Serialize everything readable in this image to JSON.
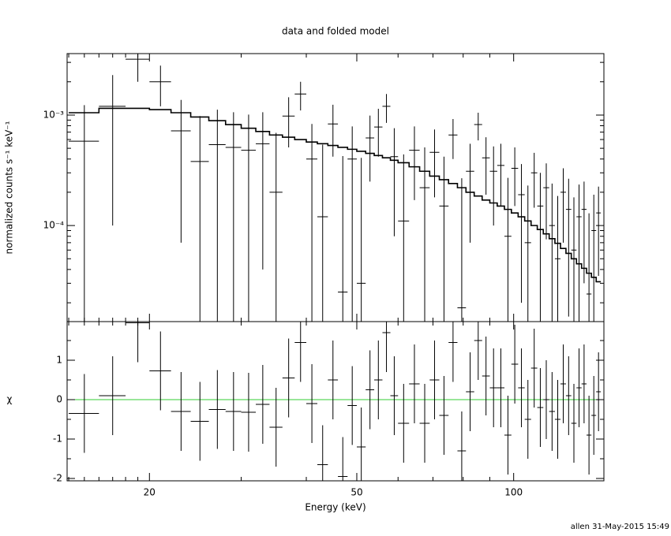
{
  "chart_data": [
    {
      "type": "errorbar",
      "title": "data and folded model",
      "ylabel": "normalized counts s⁻¹ keV⁻¹",
      "ylog": true,
      "xlim": [
        13.9,
        149
      ],
      "ylim": [
        1.35e-05,
        0.0036
      ],
      "yticks": [
        {
          "value": 0.0001,
          "label": "10⁻⁴"
        },
        {
          "value": 0.001,
          "label": "10⁻³"
        }
      ],
      "yminorticks": [
        2e-05,
        3e-05,
        4e-05,
        5e-05,
        6e-05,
        7e-05,
        8e-05,
        9e-05,
        0.0002,
        0.0003,
        0.0004,
        0.0005,
        0.0006,
        0.0007,
        0.0008,
        0.0009,
        0.002,
        0.003
      ],
      "x": [
        15,
        17,
        19,
        21,
        23,
        25,
        27,
        29,
        31,
        33,
        35,
        37,
        39,
        41,
        43,
        45,
        47,
        49,
        51,
        53,
        55,
        57,
        59,
        61.5,
        64.5,
        67.5,
        70.5,
        73.5,
        76.5,
        79.5,
        82.5,
        85.5,
        88.5,
        91.5,
        94.5,
        97.5,
        100.5,
        103.5,
        106.5,
        109.5,
        112.5,
        115.5,
        118.5,
        121.5,
        124.5,
        127.5,
        130.5,
        133.5,
        136.5,
        139.5,
        142.5,
        145.5
      ],
      "xerr": [
        1,
        1,
        1,
        1,
        1,
        1,
        1,
        1,
        1,
        1,
        1,
        1,
        1,
        1,
        1,
        1,
        1,
        1,
        1,
        1,
        1,
        1,
        1,
        1.5,
        1.5,
        1.5,
        1.5,
        1.5,
        1.5,
        1.5,
        1.5,
        1.5,
        1.5,
        1.5,
        1.5,
        1.5,
        1.5,
        1.5,
        1.5,
        1.5,
        1.5,
        1.5,
        1.5,
        1.5,
        1.5,
        1.5,
        1.5,
        1.5,
        1.5,
        1.5,
        1.5,
        1.5
      ],
      "series": [
        {
          "name": "data",
          "color": "#000000",
          "values": [
            0.00058,
            0.0012,
            0.0032,
            0.002,
            0.00072,
            0.00038,
            0.00054,
            0.00051,
            0.00048,
            0.00055,
            0.0002,
            0.00098,
            0.00155,
            0.0004,
            0.00012,
            0.00083,
            2.5e-05,
            0.0004,
            3e-05,
            0.00062,
            0.00078,
            0.0012,
            0.00042,
            0.00011,
            0.00048,
            0.00022,
            0.00046,
            0.00015,
            0.00066,
            1.8e-05,
            0.00031,
            0.00082,
            0.00041,
            0.00031,
            0.00035,
            8e-05,
            0.00033,
            0.00019,
            7e-05,
            0.0003,
            0.00015,
            0.00022,
            0.0001,
            5e-05,
            0.0002,
            0.00014,
            6e-05,
            0.00012,
            0.00014,
            2.4e-05,
            9e-05,
            0.00013
          ],
          "errors": [
            0.00065,
            0.0011,
            0.0012,
            0.0008,
            0.00065,
            0.0006,
            0.00058,
            0.00055,
            0.00053,
            0.00051,
            0.00049,
            0.00047,
            0.00045,
            0.00043,
            0.00042,
            0.00041,
            0.0004,
            0.00039,
            0.00038,
            0.00037,
            0.00036,
            0.00035,
            0.00034,
            0.00033,
            0.00031,
            0.00029,
            0.00028,
            0.00027,
            0.00026,
            0.00025,
            0.00024,
            0.00023,
            0.00022,
            0.00021,
            0.0002,
            0.00019,
            0.00018,
            0.00017,
            0.00016,
            0.000155,
            0.00015,
            0.000145,
            0.00014,
            0.000135,
            0.00013,
            0.000125,
            0.00012,
            0.000115,
            0.00011,
            0.000105,
            0.0001,
            9.5e-05
          ]
        },
        {
          "name": "model",
          "color": "#000000",
          "values": [
            0.00105,
            0.00115,
            0.00115,
            0.00112,
            0.00105,
            0.00096,
            0.00089,
            0.00082,
            0.00076,
            0.00071,
            0.00066,
            0.00063,
            0.0006,
            0.00057,
            0.00055,
            0.00053,
            0.00051,
            0.00049,
            0.00047,
            0.00045,
            0.00043,
            0.00041,
            0.00039,
            0.00037,
            0.00034,
            0.00031,
            0.00028,
            0.00026,
            0.00024,
            0.00022,
            0.0002,
            0.000185,
            0.00017,
            0.00016,
            0.00015,
            0.00014,
            0.00013,
            0.00012,
            0.00011,
            0.0001,
            9.2e-05,
            8.4e-05,
            7.6e-05,
            6.9e-05,
            6.2e-05,
            5.6e-05,
            5e-05,
            4.5e-05,
            4.1e-05,
            3.7e-05,
            3.4e-05,
            3.1e-05
          ]
        }
      ]
    },
    {
      "type": "residual",
      "xlabel": "Energy (keV)",
      "ylabel": "χ",
      "xlog": true,
      "xlim": [
        13.9,
        149
      ],
      "ylim": [
        -2.06,
        1.98
      ],
      "xticks": [
        20,
        50,
        100
      ],
      "xminorticks": [
        14,
        15,
        16,
        17,
        18,
        19,
        30,
        40,
        60,
        70,
        80,
        90
      ],
      "yticks": [
        -2,
        -1,
        0,
        1
      ],
      "yminorticks": [
        -1.5,
        -0.5,
        0.5,
        1.5
      ],
      "reference_line": 0,
      "reference_color": "#33cc33",
      "color": "#000000",
      "chi_error": 1,
      "values": [
        -0.35,
        0.1,
        1.95,
        0.73,
        -0.3,
        -0.55,
        -0.25,
        -0.3,
        -0.32,
        -0.12,
        -0.7,
        0.55,
        1.45,
        -0.1,
        -1.65,
        0.5,
        -1.95,
        -0.15,
        -1.2,
        0.25,
        0.5,
        1.7,
        0.1,
        -0.6,
        0.4,
        -0.6,
        0.5,
        -0.4,
        1.45,
        -1.3,
        0.2,
        1.5,
        0.6,
        0.3,
        0.3,
        -0.9,
        0.9,
        0.3,
        -0.5,
        0.8,
        -0.2,
        0.0,
        -0.3,
        -0.5,
        0.4,
        0.1,
        -0.6,
        0.3,
        0.4,
        -0.9,
        -0.4,
        0.2
      ]
    },
    {
      "footer": "allen 31-May-2015 15:49"
    }
  ]
}
